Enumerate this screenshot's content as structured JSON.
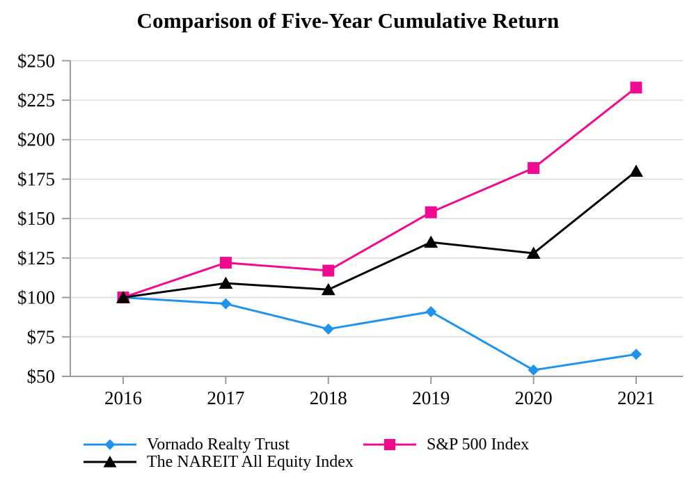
{
  "title": "Comparison of Five-Year Cumulative Return",
  "chart_data": {
    "type": "line",
    "title": "Comparison of Five-Year Cumulative Return",
    "x_labels": [
      "2016",
      "2017",
      "2018",
      "2019",
      "2020",
      "2021"
    ],
    "y_tick_labels": [
      "$50",
      "$75",
      "$100",
      "$125",
      "$150",
      "$175",
      "$200",
      "$225",
      "$250"
    ],
    "y_tick_values": [
      50,
      75,
      100,
      125,
      150,
      175,
      200,
      225,
      250
    ],
    "ylim": [
      50,
      250
    ],
    "y_tick_step": 25,
    "y_tick_prefix": "$",
    "grid": "horizontal",
    "legend_position": "bottom",
    "series": [
      {
        "name": "Vornado Realty Trust",
        "marker": "diamond",
        "color": "#2193EC",
        "values": [
          100,
          96,
          80,
          91,
          54,
          64
        ]
      },
      {
        "name": "S&P 500 Index",
        "marker": "square",
        "color": "#F00A90",
        "values": [
          100,
          122,
          117,
          154,
          182,
          233
        ]
      },
      {
        "name": "The NAREIT All Equity Index",
        "marker": "triangle",
        "color": "#000000",
        "values": [
          100,
          109,
          105,
          135,
          128,
          180
        ]
      }
    ],
    "axis_color": "#9B9B9B",
    "gridline_color": "#DBDBDB",
    "text_color": "#000000"
  },
  "legend": {
    "items": [
      {
        "label": "Vornado Realty Trust"
      },
      {
        "label": "S&P 500 Index"
      },
      {
        "label": "The NAREIT All Equity Index"
      }
    ]
  }
}
